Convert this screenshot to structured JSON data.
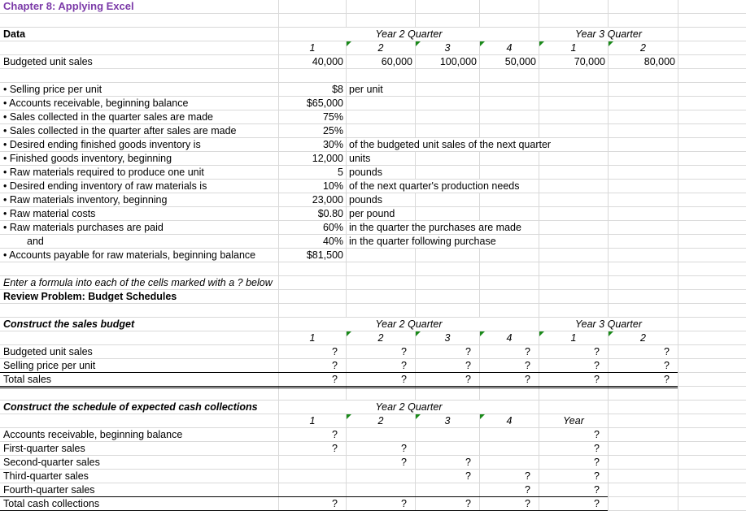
{
  "title": "Chapter 8: Applying Excel",
  "data_section": {
    "heading": "Data",
    "year2_label": "Year 2 Quarter",
    "year3_label": "Year 3 Quarter",
    "quarters": [
      "1",
      "2",
      "3",
      "4",
      "1",
      "2"
    ],
    "budgeted_label": "Budgeted unit sales",
    "budgeted_units": [
      "40,000",
      "60,000",
      "100,000",
      "50,000",
      "70,000",
      "80,000"
    ]
  },
  "assumptions": [
    {
      "label": "• Selling price per unit",
      "value": "$8",
      "note": "per unit"
    },
    {
      "label": "• Accounts receivable, beginning balance",
      "value": "$65,000",
      "note": ""
    },
    {
      "label": "• Sales collected in the quarter sales are made",
      "value": "75%",
      "note": ""
    },
    {
      "label": "• Sales collected in the quarter after sales are made",
      "value": "25%",
      "note": ""
    },
    {
      "label": "• Desired ending finished goods inventory is",
      "value": "30%",
      "note": "of the budgeted unit sales of the next quarter"
    },
    {
      "label": "• Finished goods inventory, beginning",
      "value": "12,000",
      "note": "units"
    },
    {
      "label": "• Raw materials required to produce one unit",
      "value": "5",
      "note": "pounds"
    },
    {
      "label": "• Desired ending inventory of raw materials is",
      "value": "10%",
      "note": "of the next quarter's production needs"
    },
    {
      "label": "• Raw materials inventory, beginning",
      "value": "23,000",
      "note": "pounds"
    },
    {
      "label": "• Raw material costs",
      "value": "$0.80",
      "note": "per pound"
    },
    {
      "label": "• Raw materials purchases are paid",
      "value": "60%",
      "note": "in the quarter the purchases are made"
    },
    {
      "label": "and",
      "value": "40%",
      "note": "in the quarter following purchase"
    },
    {
      "label": "• Accounts payable for raw materials, beginning balance",
      "value": "$81,500",
      "note": ""
    }
  ],
  "instruction": "Enter a formula into each of the cells marked with a ? below",
  "review_title": "Review Problem: Budget Schedules",
  "sales_budget": {
    "heading": "Construct the sales budget",
    "year2_label": "Year 2 Quarter",
    "year3_label": "Year 3 Quarter",
    "quarters": [
      "1",
      "2",
      "3",
      "4",
      "1",
      "2"
    ],
    "rows": [
      {
        "label": "Budgeted unit sales",
        "values": [
          "?",
          "?",
          "?",
          "?",
          "?",
          "?"
        ]
      },
      {
        "label": "Selling price per unit",
        "values": [
          "?",
          "?",
          "?",
          "?",
          "?",
          "?"
        ]
      },
      {
        "label": "Total sales",
        "values": [
          "?",
          "?",
          "?",
          "?",
          "?",
          "?"
        ]
      }
    ]
  },
  "cash_collections": {
    "heading": "Construct the schedule of expected cash collections",
    "year2_label": "Year 2 Quarter",
    "quarters": [
      "1",
      "2",
      "3",
      "4"
    ],
    "year_label": "Year",
    "rows": [
      {
        "label": "Accounts receivable, beginning balance",
        "values": [
          "?",
          "",
          "",
          "",
          "?"
        ]
      },
      {
        "label": "First-quarter sales",
        "values": [
          "?",
          "?",
          "",
          "",
          "?"
        ]
      },
      {
        "label": "Second-quarter sales",
        "values": [
          "",
          "?",
          "?",
          "",
          "?"
        ]
      },
      {
        "label": "Third-quarter sales",
        "values": [
          "",
          "",
          "?",
          "?",
          "?"
        ]
      },
      {
        "label": "Fourth-quarter sales",
        "values": [
          "",
          "",
          "",
          "?",
          "?"
        ]
      },
      {
        "label": "Total cash collections",
        "values": [
          "?",
          "?",
          "?",
          "?",
          "?"
        ]
      }
    ]
  },
  "colors": {
    "title": "#7b3aa8",
    "grid": "#d9d9d9",
    "error_indicator": "#1a8a1a"
  }
}
